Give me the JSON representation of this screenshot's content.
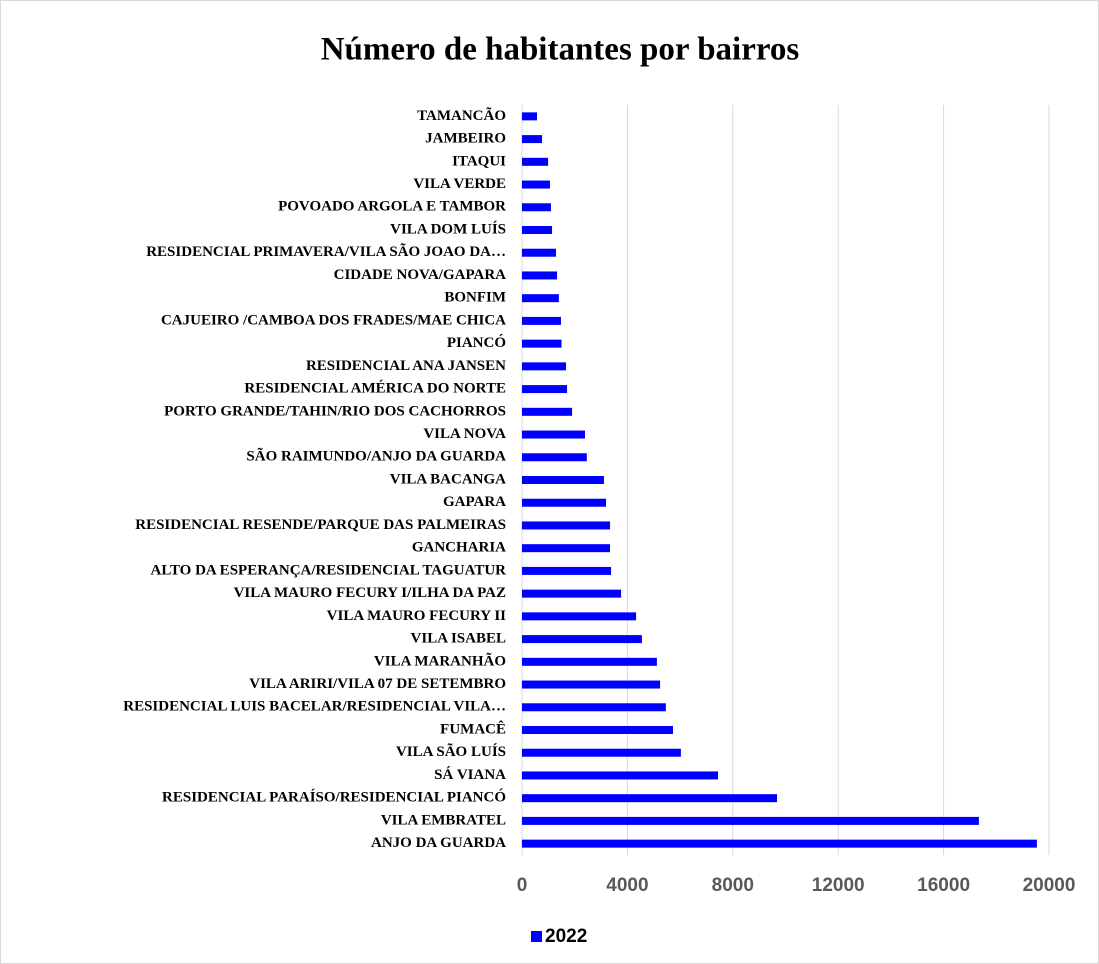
{
  "chart_data": {
    "type": "bar",
    "orientation": "horizontal",
    "title": "Número de habitantes por bairros",
    "categories": [
      "TAMANCÃO",
      "JAMBEIRO",
      "ITAQUI",
      "VILA VERDE",
      "POVOADO ARGOLA E TAMBOR",
      "VILA DOM LUÍS",
      "RESIDENCIAL PRIMAVERA/VILA SÃO JOAO DA…",
      "CIDADE NOVA/GAPARA",
      "BONFIM",
      "CAJUEIRO /CAMBOA DOS FRADES/MAE CHICA",
      "PIANCÓ",
      "RESIDENCIAL ANA JANSEN",
      "RESIDENCIAL AMÉRICA DO NORTE",
      "PORTO GRANDE/TAHIN/RIO DOS CACHORROS",
      "VILA NOVA",
      "SÃO RAIMUNDO/ANJO DA GUARDA",
      "VILA BACANGA",
      "GAPARA",
      "RESIDENCIAL RESENDE/PARQUE DAS PALMEIRAS",
      "GANCHARIA",
      "ALTO DA ESPERANÇA/RESIDENCIAL TAGUATUR",
      "VILA MAURO FECURY I/ILHA DA PAZ",
      "VILA MAURO FECURY II",
      "VILA ISABEL",
      "VILA MARANHÃO",
      "VILA ARIRI/VILA 07 DE SETEMBRO",
      "RESIDENCIAL LUIS BACELAR/RESIDENCIAL VILA…",
      "FUMACÊ",
      "VILA SÃO LUÍS",
      "SÁ VIANA",
      "RESIDENCIAL PARAÍSO/RESIDENCIAL PIANCÓ",
      "VILA EMBRATEL",
      "ANJO DA GUARDA"
    ],
    "series": [
      {
        "name": "2022",
        "color": "#0000ff",
        "values": [
          570,
          760,
          990,
          1060,
          1100,
          1140,
          1290,
          1330,
          1400,
          1480,
          1500,
          1670,
          1710,
          1900,
          2390,
          2460,
          3110,
          3190,
          3340,
          3340,
          3380,
          3760,
          4330,
          4550,
          5120,
          5240,
          5460,
          5730,
          6030,
          7440,
          9680,
          17340,
          19540
        ]
      }
    ],
    "xlim": [
      0,
      20000
    ],
    "xticks": [
      0,
      4000,
      8000,
      12000,
      16000,
      20000
    ],
    "grid": true,
    "legend": "bottom"
  }
}
